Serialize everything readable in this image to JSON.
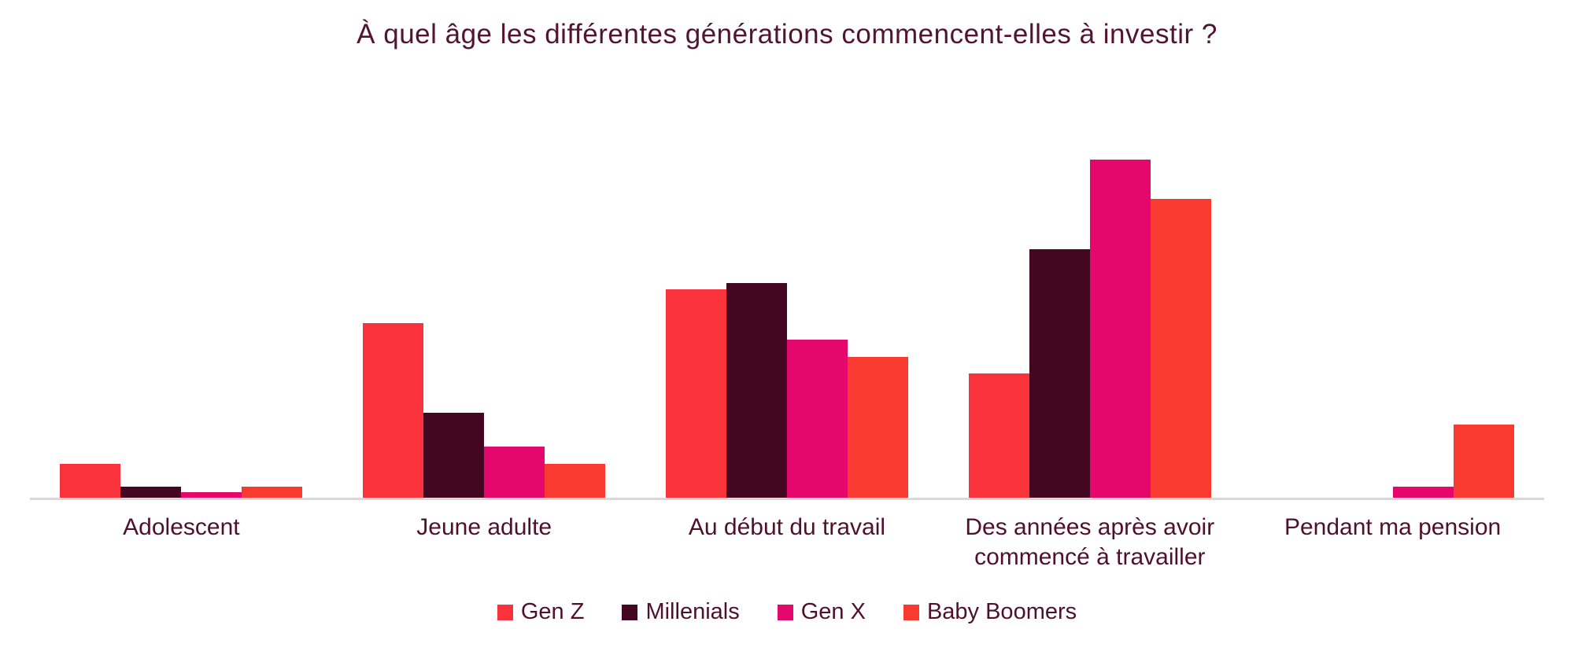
{
  "chart_data": {
    "type": "bar",
    "title": "À quel âge les différentes générations commencent-elles à investir ?",
    "categories": [
      "Adolescent",
      "Jeune adulte",
      "Au début du travail",
      "Des années après avoir commencé à travailler",
      "Pendant ma pension"
    ],
    "series": [
      {
        "name": "Gen Z",
        "color": "#fa323c",
        "values": [
          6,
          31,
          37,
          22,
          0
        ]
      },
      {
        "name": "Millenials",
        "color": "#430721",
        "values": [
          2,
          15,
          38,
          44,
          0
        ]
      },
      {
        "name": "Gen X",
        "color": "#e5076c",
        "values": [
          1,
          9,
          28,
          60,
          2
        ]
      },
      {
        "name": "Baby Boomers",
        "color": "#f93a30",
        "values": [
          2,
          6,
          25,
          53,
          13
        ]
      }
    ],
    "xlabel": "",
    "ylabel": "",
    "ylim": [
      0,
      63
    ],
    "value_unit": "percent (estimated, no axis labels shown)",
    "grid": false,
    "legend_position": "bottom",
    "axis_color": "#d9d9d9",
    "text_color": "#4f1129",
    "title_color": "#521431"
  }
}
